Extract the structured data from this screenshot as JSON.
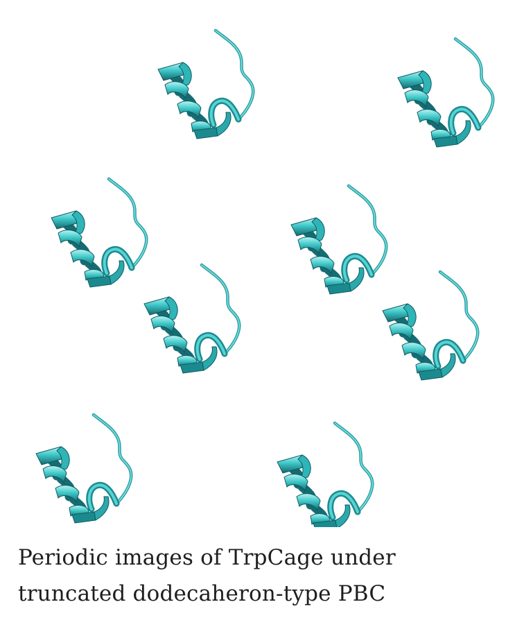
{
  "figure": {
    "molecule": "TrpCage",
    "representation": "cartoon-ribbon",
    "ribbon_color": "#3ec7c7",
    "ribbon_shadow_color": "#15686e",
    "ribbon_highlight_color": "#b6f3f3",
    "image_count": 8
  },
  "caption": {
    "text": "Periodic images of TrpCage under truncated dodecaheron-type PBC"
  }
}
